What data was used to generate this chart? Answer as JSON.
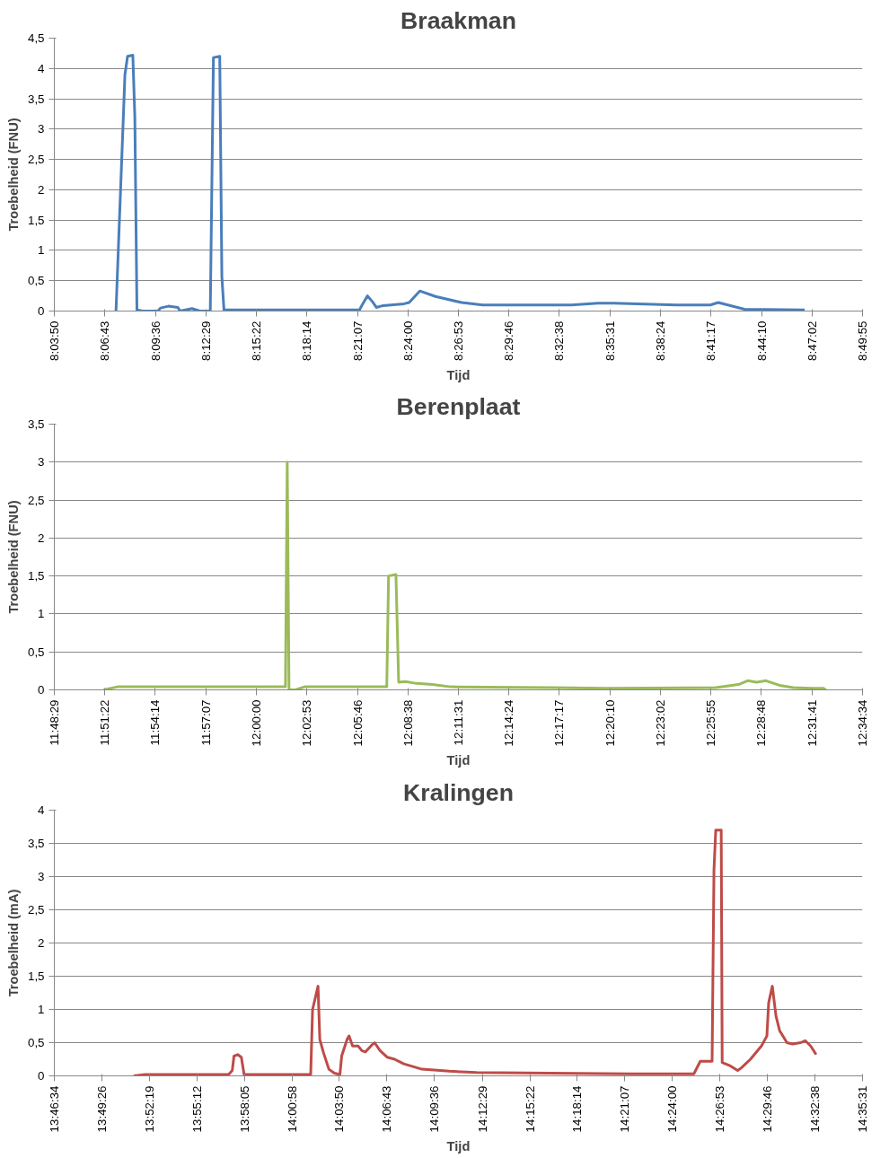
{
  "chart_data": [
    {
      "type": "line",
      "title": "Braakman",
      "xlabel": "Tijd",
      "ylabel": "Troebelheid (FNU)",
      "grid": "y",
      "xlim": [
        8.06389,
        8.83194
      ],
      "ylim": [
        0,
        4.5
      ],
      "xticks": [
        {
          "value": 8.06389,
          "label": "8:03:50"
        },
        {
          "value": 8.11194,
          "label": "8:06:43"
        },
        {
          "value": 8.16,
          "label": "8:09:36"
        },
        {
          "value": 8.20806,
          "label": "8:12:29"
        },
        {
          "value": 8.25611,
          "label": "8:15:22"
        },
        {
          "value": 8.30389,
          "label": "8:18:14"
        },
        {
          "value": 8.35194,
          "label": "8:21:07"
        },
        {
          "value": 8.4,
          "label": "8:24:00"
        },
        {
          "value": 8.44806,
          "label": "8:26:53"
        },
        {
          "value": 8.49611,
          "label": "8:29:46"
        },
        {
          "value": 8.54389,
          "label": "8:32:38"
        },
        {
          "value": 8.59194,
          "label": "8:35:31"
        },
        {
          "value": 8.64,
          "label": "8:38:24"
        },
        {
          "value": 8.68806,
          "label": "8:41:17"
        },
        {
          "value": 8.73611,
          "label": "8:44:10"
        },
        {
          "value": 8.78389,
          "label": "8:47:02"
        },
        {
          "value": 8.83194,
          "label": "8:49:55"
        }
      ],
      "yticks": [
        0,
        {
          "value": 0.5,
          "label": "0,5"
        },
        1,
        {
          "value": 1.5,
          "label": "1,5"
        },
        2,
        {
          "value": 2.5,
          "label": "2,5"
        },
        3,
        {
          "value": 3.5,
          "label": "3,5"
        },
        4,
        {
          "value": 4.5,
          "label": "4,5"
        }
      ],
      "series": [
        {
          "color": "#4a7ebb",
          "x": [
            8.1225,
            8.131,
            8.1335,
            8.1385,
            8.1404,
            8.1424,
            8.1474,
            8.1623,
            8.1648,
            8.1723,
            8.1813,
            8.1833,
            8.1947,
            8.2022,
            8.2121,
            8.2151,
            8.2211,
            8.2231,
            8.2251,
            8.354,
            8.3564,
            8.3615,
            8.3664,
            8.3699,
            8.3764,
            8.3963,
            8.4011,
            8.4112,
            8.4261,
            8.451,
            8.471,
            8.5555,
            8.5805,
            8.5954,
            8.6552,
            8.6873,
            8.6949,
            8.7198,
            8.777
          ],
          "values": [
            0,
            3.9,
            4.2,
            4.22,
            3.2,
            0.02,
            0,
            0,
            0.05,
            0.08,
            0.06,
            0,
            0.04,
            0,
            0,
            4.18,
            4.2,
            0.57,
            0.02,
            0.02,
            0.1,
            0.25,
            0.15,
            0.06,
            0.09,
            0.12,
            0.14,
            0.33,
            0.24,
            0.14,
            0.1,
            0.1,
            0.13,
            0.13,
            0.1,
            0.1,
            0.14,
            0.03,
            0.02
          ]
        }
      ]
    },
    {
      "type": "line",
      "title": "Berenplaat",
      "xlabel": "Tijd",
      "ylabel": "Troebelheid (FNU)",
      "grid": "y",
      "xlim": [
        11.80806,
        12.57611
      ],
      "ylim": [
        0,
        3.5
      ],
      "xticks": [
        {
          "value": 11.80806,
          "label": "11:48:29"
        },
        {
          "value": 11.85611,
          "label": "11:51:22"
        },
        {
          "value": 11.90389,
          "label": "11:54:14"
        },
        {
          "value": 11.95194,
          "label": "11:57:07"
        },
        {
          "value": 12.0,
          "label": "12:00:00"
        },
        {
          "value": 12.04806,
          "label": "12:02:53"
        },
        {
          "value": 12.09611,
          "label": "12:05:46"
        },
        {
          "value": 12.14389,
          "label": "12:08:38"
        },
        {
          "value": 12.19194,
          "label": "12:11:31"
        },
        {
          "value": 12.24,
          "label": "12:14:24"
        },
        {
          "value": 12.28806,
          "label": "12:17:17"
        },
        {
          "value": 12.33611,
          "label": "12:20:10"
        },
        {
          "value": 12.38389,
          "label": "12:23:02"
        },
        {
          "value": 12.43194,
          "label": "12:25:55"
        },
        {
          "value": 12.48,
          "label": "12:28:48"
        },
        {
          "value": 12.52806,
          "label": "12:31:41"
        },
        {
          "value": 12.57611,
          "label": "12:34:34"
        }
      ],
      "yticks": [
        0,
        {
          "value": 0.5,
          "label": "0,5"
        },
        1,
        {
          "value": 1.5,
          "label": "1,5"
        },
        2,
        {
          "value": 2.5,
          "label": "2,5"
        },
        3,
        {
          "value": 3.5,
          "label": "3,5"
        }
      ],
      "series": [
        {
          "color": "#9bbb59",
          "x": [
            11.8549,
            11.868,
            12.0277,
            12.0294,
            12.0311,
            12.0372,
            12.0459,
            12.1066,
            12.124,
            12.1257,
            12.1327,
            12.1353,
            12.1414,
            12.1501,
            12.1674,
            12.1848,
            12.2803,
            12.3324,
            12.4365,
            12.4582,
            12.4669,
            12.4756,
            12.4843,
            12.4973,
            12.5103,
            12.5276,
            12.5389,
            12.5415
          ],
          "values": [
            0,
            0.04,
            0.04,
            3.0,
            0,
            0,
            0.04,
            0.04,
            0.04,
            1.5,
            1.52,
            0.1,
            0.11,
            0.09,
            0.07,
            0.04,
            0.03,
            0.02,
            0.03,
            0.07,
            0.12,
            0.1,
            0.12,
            0.06,
            0.03,
            0.02,
            0.02,
            0
          ]
        }
      ]
    },
    {
      "type": "line",
      "title": "Kralingen",
      "xlabel": "Tijd",
      "ylabel": "Troebelheid (mA)",
      "grid": "y",
      "xlim": [
        13.77611,
        14.59194
      ],
      "ylim": [
        0,
        4
      ],
      "xticks": [
        {
          "value": 13.77611,
          "label": "13:46:34"
        },
        {
          "value": 13.82389,
          "label": "13:49:26"
        },
        {
          "value": 13.87194,
          "label": "13:52:19"
        },
        {
          "value": 13.92,
          "label": "13:55:12"
        },
        {
          "value": 13.96806,
          "label": "13:58:05"
        },
        {
          "value": 14.01611,
          "label": "14:00:58"
        },
        {
          "value": 14.06389,
          "label": "14:03:50"
        },
        {
          "value": 14.11194,
          "label": "14:06:43"
        },
        {
          "value": 14.16,
          "label": "14:09:36"
        },
        {
          "value": 14.20806,
          "label": "14:12:29"
        },
        {
          "value": 14.25611,
          "label": "14:15:22"
        },
        {
          "value": 14.30389,
          "label": "14:18:14"
        },
        {
          "value": 14.35194,
          "label": "14:21:07"
        },
        {
          "value": 14.4,
          "label": "14:24:00"
        },
        {
          "value": 14.44806,
          "label": "14:26:53"
        },
        {
          "value": 14.49611,
          "label": "14:29:46"
        },
        {
          "value": 14.54389,
          "label": "14:32:38"
        },
        {
          "value": 14.59194,
          "label": "14:35:31"
        }
      ],
      "yticks": [
        0,
        {
          "value": 0.5,
          "label": "0,5"
        },
        1,
        {
          "value": 1.5,
          "label": "1,5"
        },
        2,
        {
          "value": 2.5,
          "label": "2,5"
        },
        3,
        {
          "value": 3.5,
          "label": "3,5"
        },
        4
      ],
      "series": [
        {
          "color": "#be4b48",
          "x": [
            13.8562,
            13.8682,
            13.952,
            13.9557,
            13.9575,
            13.9612,
            13.9649,
            13.9677,
            14.0349,
            14.0368,
            14.0423,
            14.0441,
            14.0478,
            14.0533,
            14.0588,
            14.0644,
            14.0662,
            14.0717,
            14.0736,
            14.0772,
            14.0828,
            14.0865,
            14.0902,
            14.0957,
            14.0994,
            14.1049,
            14.1123,
            14.1196,
            14.1289,
            14.1473,
            14.1749,
            14.2025,
            14.2762,
            14.3591,
            14.4217,
            14.4282,
            14.4401,
            14.442,
            14.4438,
            14.4493,
            14.4503,
            14.4586,
            14.4659,
            14.4696,
            14.4788,
            14.4899,
            14.4954,
            14.4972,
            14.5009,
            14.5046,
            14.5083,
            14.5157,
            14.5212,
            14.5295,
            14.5341,
            14.5396,
            14.5451
          ],
          "values": [
            0,
            0.02,
            0.02,
            0.08,
            0.3,
            0.32,
            0.28,
            0.02,
            0.02,
            1.0,
            1.35,
            0.55,
            0.35,
            0.1,
            0.04,
            0.02,
            0.3,
            0.55,
            0.6,
            0.45,
            0.45,
            0.38,
            0.36,
            0.45,
            0.5,
            0.38,
            0.28,
            0.25,
            0.18,
            0.1,
            0.07,
            0.05,
            0.04,
            0.03,
            0.03,
            0.22,
            0.22,
            3.1,
            3.7,
            3.7,
            0.2,
            0.15,
            0.08,
            0.12,
            0.25,
            0.45,
            0.6,
            1.1,
            1.35,
            0.9,
            0.68,
            0.5,
            0.48,
            0.5,
            0.53,
            0.45,
            0.32
          ]
        }
      ]
    }
  ]
}
